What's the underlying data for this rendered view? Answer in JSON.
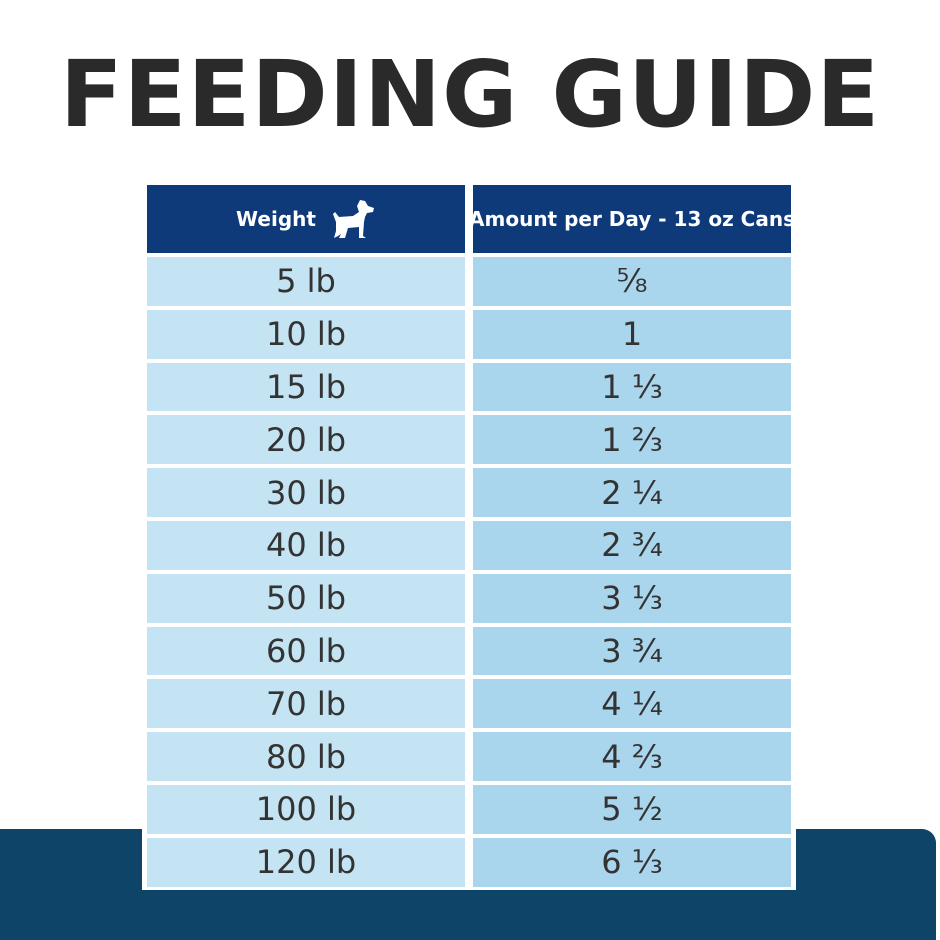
{
  "title": "FEEDING GUIDE",
  "table": {
    "headers": {
      "weight": "Weight",
      "weight_icon": "dog-icon",
      "amount": "Amount per Day - 13 oz Cans"
    },
    "rows": [
      {
        "weight": "5 lb",
        "amount": "⅝"
      },
      {
        "weight": "10 lb",
        "amount": "1"
      },
      {
        "weight": "15 lb",
        "amount": "1 ⅓"
      },
      {
        "weight": "20 lb",
        "amount": "1 ⅔"
      },
      {
        "weight": "30 lb",
        "amount": "2 ¼"
      },
      {
        "weight": "40 lb",
        "amount": "2 ¾"
      },
      {
        "weight": "50 lb",
        "amount": "3 ⅓"
      },
      {
        "weight": "60 lb",
        "amount": "3 ¾"
      },
      {
        "weight": "70 lb",
        "amount": "4 ¼"
      },
      {
        "weight": "80 lb",
        "amount": "4 ⅔"
      },
      {
        "weight": "100 lb",
        "amount": "5 ½"
      },
      {
        "weight": "120 lb",
        "amount": "6 ⅓"
      }
    ]
  },
  "colors": {
    "title_text": "#2a2a2a",
    "header_bg": "#0f3a7a",
    "weight_cell_bg": "#c4e3f3",
    "amount_cell_bg": "#a9d6ec",
    "bottom_band": "#0e4468"
  }
}
